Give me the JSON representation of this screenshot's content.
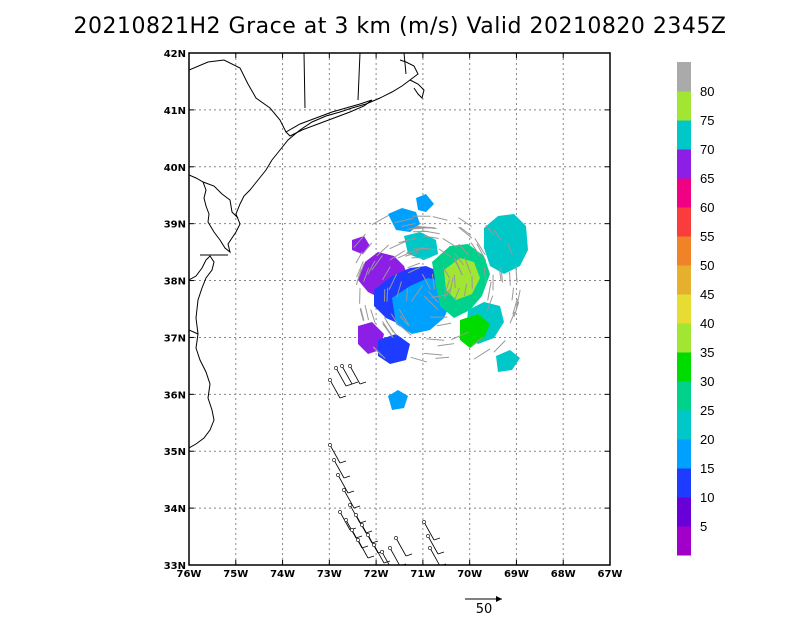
{
  "title": "20210821H2 Grace at 3 km (m/s) Valid 20210820 2345Z",
  "map": {
    "lon_labels": [
      "76W",
      "75W",
      "74W",
      "73W",
      "72W",
      "71W",
      "70W",
      "69W",
      "68W",
      "67W"
    ],
    "lat_labels": [
      "33N",
      "34N",
      "35N",
      "36N",
      "37N",
      "38N",
      "39N",
      "40N",
      "41N",
      "42N"
    ],
    "lon_range": [
      -76,
      -67
    ],
    "lat_range": [
      33,
      42
    ],
    "grid": true
  },
  "colorbar": {
    "labels": [
      "5",
      "10",
      "15",
      "20",
      "25",
      "30",
      "35",
      "40",
      "45",
      "50",
      "55",
      "60",
      "65",
      "70",
      "75",
      "80"
    ],
    "colors": [
      "#a000c8",
      "#6a00d8",
      "#1e3cff",
      "#00a0ff",
      "#00c8c8",
      "#00d28c",
      "#00dc00",
      "#a0e632",
      "#e6dc32",
      "#e6af2d",
      "#f08228",
      "#fa3c3c",
      "#f00082",
      "#8c1ee6",
      "#00c8c8",
      "#a0e632",
      "#aaaaaa"
    ]
  },
  "reference_vector": {
    "label": "50"
  }
}
